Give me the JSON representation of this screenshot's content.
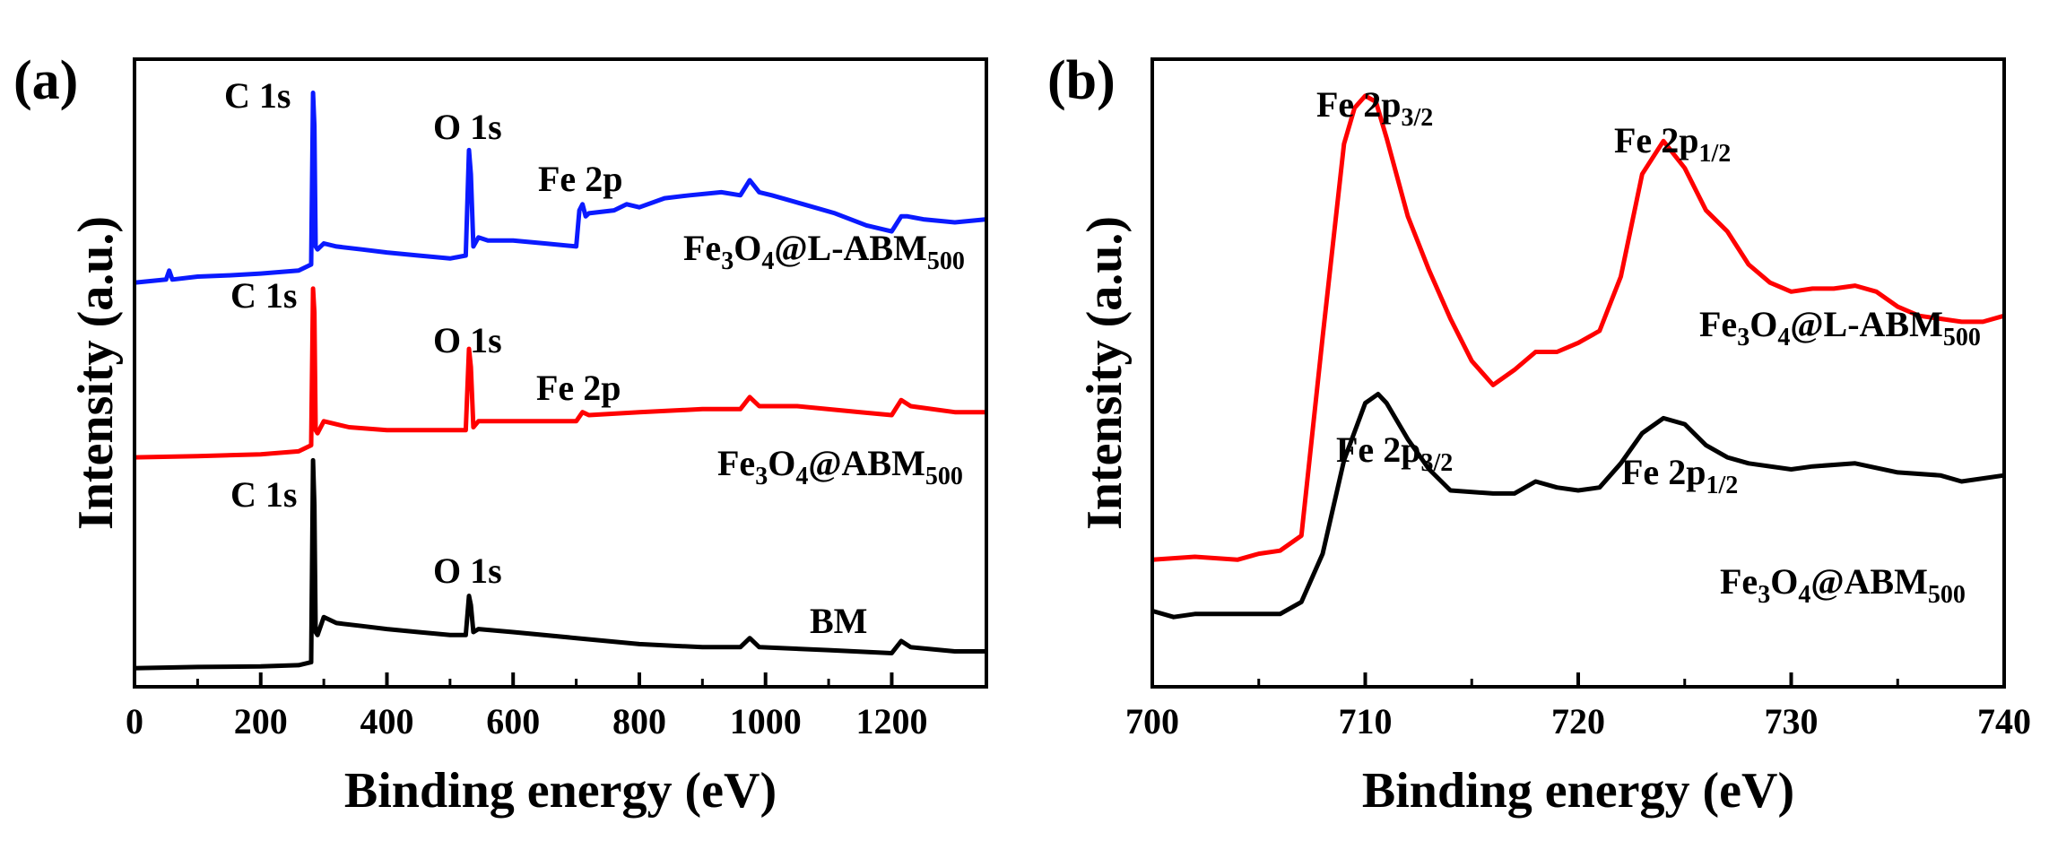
{
  "chart_data": [
    {
      "panel_label": "(a)",
      "type": "line",
      "title": "",
      "xlabel": "Binding energy (eV)",
      "ylabel": "Intensity (a.u.)",
      "xlim": [
        0,
        1350
      ],
      "ylim": [
        0,
        10
      ],
      "xticks": [
        0,
        200,
        400,
        600,
        800,
        1000,
        1200
      ],
      "xtick_labels": [
        "0",
        "200",
        "400",
        "600",
        "800",
        "1000",
        "1200"
      ],
      "yticks": [],
      "series": [
        {
          "name": "Fe3O4@L-ABM500",
          "color": "#0a1aff",
          "label_main": "Fe",
          "label_s1": "3",
          "label_m2": "O",
          "label_s2": "4",
          "label_m3": "@L-ABM",
          "label_s3": "500",
          "x": [
            0,
            50,
            55,
            60,
            100,
            150,
            200,
            260,
            280,
            283,
            285,
            287,
            290,
            300,
            320,
            360,
            400,
            450,
            500,
            525,
            530,
            533,
            537,
            545,
            560,
            600,
            650,
            700,
            705,
            710,
            715,
            720,
            760,
            780,
            800,
            840,
            880,
            930,
            960,
            975,
            990,
            1010,
            1060,
            1110,
            1160,
            1200,
            1215,
            1225,
            1250,
            1300,
            1350
          ],
          "y": [
            6.5,
            6.55,
            6.7,
            6.55,
            6.6,
            6.62,
            6.65,
            6.7,
            6.8,
            9.65,
            9.1,
            7.1,
            7.05,
            7.15,
            7.1,
            7.05,
            7.0,
            6.95,
            6.9,
            6.95,
            8.7,
            8.3,
            7.1,
            7.25,
            7.2,
            7.2,
            7.15,
            7.1,
            7.7,
            7.8,
            7.6,
            7.65,
            7.7,
            7.8,
            7.75,
            7.9,
            7.95,
            8.0,
            7.95,
            8.2,
            8.0,
            7.95,
            7.8,
            7.65,
            7.45,
            7.35,
            7.6,
            7.6,
            7.55,
            7.5,
            7.55
          ]
        },
        {
          "name": "Fe3O4@ABM500",
          "color": "#ff0000",
          "label_main": "Fe",
          "label_s1": "3",
          "label_m2": "O",
          "label_s2": "4",
          "label_m3": "@ABM",
          "label_s3": "500",
          "x": [
            0,
            100,
            200,
            260,
            280,
            283,
            285,
            287,
            290,
            300,
            340,
            400,
            450,
            500,
            525,
            530,
            533,
            537,
            545,
            600,
            650,
            700,
            710,
            720,
            800,
            900,
            960,
            975,
            990,
            1050,
            1150,
            1200,
            1215,
            1230,
            1300,
            1350
          ],
          "y": [
            3.6,
            3.62,
            3.65,
            3.7,
            3.8,
            6.4,
            6.0,
            4.05,
            4.0,
            4.2,
            4.1,
            4.05,
            4.05,
            4.05,
            4.05,
            5.4,
            5.1,
            4.1,
            4.2,
            4.2,
            4.2,
            4.2,
            4.35,
            4.3,
            4.35,
            4.4,
            4.4,
            4.6,
            4.45,
            4.45,
            4.35,
            4.3,
            4.55,
            4.45,
            4.35,
            4.35
          ]
        },
        {
          "name": "BM",
          "color": "#000000",
          "label_main": "BM",
          "x": [
            0,
            100,
            200,
            260,
            280,
            283,
            285,
            287,
            290,
            300,
            320,
            360,
            400,
            450,
            500,
            525,
            530,
            533,
            537,
            545,
            600,
            700,
            800,
            900,
            960,
            975,
            990,
            1100,
            1200,
            1215,
            1230,
            1300,
            1350
          ],
          "y": [
            0.1,
            0.12,
            0.13,
            0.15,
            0.2,
            3.55,
            2.8,
            0.7,
            0.65,
            0.95,
            0.85,
            0.8,
            0.75,
            0.7,
            0.65,
            0.65,
            1.3,
            1.15,
            0.7,
            0.75,
            0.7,
            0.6,
            0.5,
            0.45,
            0.45,
            0.6,
            0.45,
            0.4,
            0.35,
            0.55,
            0.45,
            0.38,
            0.38
          ]
        }
      ],
      "annotations": [
        {
          "text": "C 1s",
          "series": "Fe3O4@L-ABM500"
        },
        {
          "text": "O 1s",
          "series": "Fe3O4@L-ABM500"
        },
        {
          "text": "Fe 2p",
          "series": "Fe3O4@L-ABM500"
        },
        {
          "text": "C 1s",
          "series": "Fe3O4@ABM500"
        },
        {
          "text": "O 1s",
          "series": "Fe3O4@ABM500"
        },
        {
          "text": "Fe 2p",
          "series": "Fe3O4@ABM500"
        },
        {
          "text": "C 1s",
          "series": "BM"
        },
        {
          "text": "O 1s",
          "series": "BM"
        }
      ]
    },
    {
      "panel_label": "(b)",
      "type": "line",
      "title": "",
      "xlabel": "Binding energy (eV)",
      "ylabel": "Intensity (a.u.)",
      "xlim": [
        700,
        740
      ],
      "ylim": [
        0,
        10
      ],
      "xticks": [
        700,
        710,
        720,
        730,
        740
      ],
      "xtick_labels": [
        "700",
        "710",
        "720",
        "730",
        "740"
      ],
      "yticks": [],
      "series": [
        {
          "name": "Fe3O4@L-ABM500",
          "color": "#ff0000",
          "label_main": "Fe",
          "label_s1": "3",
          "label_m2": "O",
          "label_s2": "4",
          "label_m3": "@L-ABM",
          "label_s3": "500",
          "x": [
            700,
            702,
            704,
            705,
            706,
            707,
            708,
            709,
            709.5,
            710,
            710.5,
            711,
            712,
            713,
            714,
            715,
            716,
            717,
            718,
            719,
            720,
            721,
            722,
            723,
            724,
            725,
            726,
            727,
            728,
            729,
            730,
            731,
            732,
            733,
            734,
            735,
            736,
            737,
            738,
            739,
            740
          ],
          "y": [
            1.9,
            1.95,
            1.9,
            2.0,
            2.05,
            2.3,
            5.6,
            8.8,
            9.4,
            9.6,
            9.5,
            8.9,
            7.6,
            6.7,
            5.9,
            5.2,
            4.8,
            5.05,
            5.35,
            5.35,
            5.5,
            5.7,
            6.6,
            8.3,
            8.85,
            8.4,
            7.7,
            7.35,
            6.8,
            6.5,
            6.35,
            6.4,
            6.4,
            6.45,
            6.35,
            6.1,
            5.95,
            5.9,
            5.85,
            5.85,
            5.95
          ]
        },
        {
          "name": "Fe3O4@ABM500",
          "color": "#000000",
          "label_main": "Fe",
          "label_s1": "3",
          "label_m2": "O",
          "label_s2": "4",
          "label_m3": "@ABM",
          "label_s3": "500",
          "x": [
            700,
            701,
            702,
            704,
            706,
            707,
            708,
            709,
            710,
            710.6,
            711,
            712,
            713,
            714,
            716,
            717,
            718,
            719,
            720,
            721,
            722,
            723,
            724,
            725,
            726,
            727,
            728,
            730,
            731,
            733,
            735,
            737,
            738,
            740
          ],
          "y": [
            1.05,
            0.95,
            1.0,
            1.0,
            1.0,
            1.2,
            2.0,
            3.55,
            4.5,
            4.65,
            4.5,
            3.9,
            3.4,
            3.05,
            3.0,
            3.0,
            3.2,
            3.1,
            3.05,
            3.1,
            3.5,
            4.0,
            4.25,
            4.15,
            3.8,
            3.6,
            3.5,
            3.4,
            3.45,
            3.5,
            3.35,
            3.3,
            3.2,
            3.3
          ]
        }
      ],
      "annotations": [
        {
          "text": "Fe 2p",
          "sub": "3/2",
          "series": "Fe3O4@L-ABM500"
        },
        {
          "text": "Fe 2p",
          "sub": "1/2",
          "series": "Fe3O4@L-ABM500"
        },
        {
          "text": "Fe 2p",
          "sub": "3/2",
          "series": "Fe3O4@ABM500"
        },
        {
          "text": "Fe 2p",
          "sub": "1/2",
          "series": "Fe3O4@ABM500"
        }
      ]
    }
  ]
}
